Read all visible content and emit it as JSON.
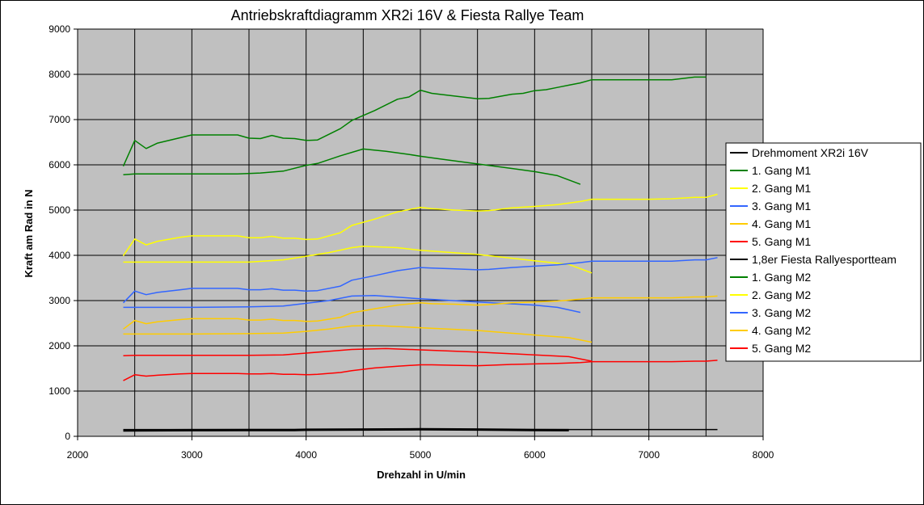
{
  "chart_data": {
    "type": "line",
    "title": "Antriebskraftdiagramm XR2i 16V & Fiesta Rallye Team",
    "xlabel": "Drehzahl in U/min",
    "ylabel": "Kraft am Rad in N",
    "xlim": [
      2000,
      8000
    ],
    "ylim": [
      0,
      9000
    ],
    "x_ticks": [
      2000,
      3000,
      4000,
      5000,
      6000,
      7000,
      8000
    ],
    "y_ticks": [
      0,
      1000,
      2000,
      3000,
      4000,
      5000,
      6000,
      7000,
      8000,
      9000
    ],
    "grid": "vertical and horizontal",
    "plot_background": "#c0c0c0",
    "legend_position": "right",
    "series": [
      {
        "name": "Drehmoment XR2i 16V",
        "color": "#000000",
        "width": 3,
        "x": [
          2400,
          3000,
          3500,
          3900,
          4000,
          4500,
          5000,
          5500,
          6000,
          6300
        ],
        "y": [
          130,
          135,
          140,
          140,
          145,
          150,
          155,
          150,
          140,
          135
        ]
      },
      {
        "name": "1. Gang M1",
        "color": "#008000",
        "width": 1.5,
        "x": [
          2400,
          2500,
          2600,
          2800,
          3000,
          3400,
          3600,
          3800,
          4000,
          4100,
          4300,
          4500,
          4700,
          4900,
          5000,
          5200,
          5500,
          5800,
          6000,
          6200,
          6400
        ],
        "y": [
          5780,
          5800,
          5800,
          5800,
          5800,
          5800,
          5820,
          5860,
          5990,
          6030,
          6200,
          6350,
          6300,
          6230,
          6190,
          6120,
          6020,
          5920,
          5850,
          5760,
          5570
        ]
      },
      {
        "name": "2. Gang M1",
        "color": "#ffff00",
        "width": 1.5,
        "x": [
          2400,
          2500,
          3000,
          3500,
          3800,
          4000,
          4200,
          4400,
          4500,
          4800,
          5000,
          5500,
          6000,
          6300,
          6500
        ],
        "y": [
          3850,
          3850,
          3850,
          3850,
          3900,
          3980,
          4060,
          4170,
          4200,
          4170,
          4110,
          4020,
          3880,
          3800,
          3610
        ]
      },
      {
        "name": "3. Gang M1",
        "color": "#3366ff",
        "width": 1.5,
        "x": [
          2400,
          2500,
          3000,
          3500,
          3800,
          4000,
          4200,
          4400,
          4600,
          5000,
          5500,
          6000,
          6200,
          6400
        ],
        "y": [
          2850,
          2850,
          2850,
          2860,
          2880,
          2940,
          3000,
          3100,
          3110,
          3040,
          2970,
          2900,
          2850,
          2740
        ]
      },
      {
        "name": "4. Gang M1",
        "color": "#ffcc00",
        "width": 1.5,
        "x": [
          2400,
          2500,
          3000,
          3500,
          3800,
          4000,
          4200,
          4400,
          4600,
          5000,
          5500,
          6000,
          6300,
          6500
        ],
        "y": [
          2260,
          2260,
          2260,
          2270,
          2280,
          2320,
          2370,
          2440,
          2450,
          2400,
          2340,
          2240,
          2180,
          2080
        ]
      },
      {
        "name": "5. Gang M1",
        "color": "#ff0000",
        "width": 1.5,
        "x": [
          2400,
          2500,
          3000,
          3500,
          3800,
          4000,
          4200,
          4400,
          4700,
          5000,
          5500,
          6000,
          6300,
          6500
        ],
        "y": [
          1780,
          1790,
          1790,
          1790,
          1800,
          1840,
          1880,
          1920,
          1940,
          1910,
          1860,
          1800,
          1760,
          1660
        ]
      },
      {
        "name": "1,8er Fiesta Rallyesportteam",
        "color": "#000000",
        "width": 1.5,
        "x": [
          2400,
          3000,
          4000,
          5000,
          6000,
          7000,
          7600
        ],
        "y": [
          150,
          150,
          150,
          150,
          150,
          150,
          150
        ]
      },
      {
        "name": "1. Gang M2",
        "color": "#008000",
        "width": 1.5,
        "x": [
          2400,
          2500,
          2600,
          2700,
          2900,
          3000,
          3400,
          3500,
          3600,
          3700,
          3800,
          3900,
          4000,
          4100,
          4300,
          4400,
          4600,
          4800,
          4900,
          5000,
          5100,
          5300,
          5500,
          5600,
          5800,
          5900,
          6000,
          6100,
          6200,
          6300,
          6400,
          6500,
          7000,
          7200,
          7400,
          7500
        ],
        "y": [
          5970,
          6540,
          6360,
          6480,
          6600,
          6660,
          6660,
          6590,
          6580,
          6650,
          6590,
          6580,
          6540,
          6550,
          6800,
          6980,
          7200,
          7450,
          7500,
          7650,
          7580,
          7520,
          7460,
          7470,
          7560,
          7580,
          7640,
          7660,
          7710,
          7760,
          7810,
          7880,
          7880,
          7880,
          7940,
          7940
        ]
      },
      {
        "name": "2. Gang M2",
        "color": "#ffff00",
        "width": 1.5,
        "x": [
          2400,
          2500,
          2600,
          2700,
          2900,
          3000,
          3400,
          3500,
          3600,
          3700,
          3800,
          3900,
          4000,
          4100,
          4300,
          4400,
          4600,
          4800,
          5000,
          5100,
          5300,
          5500,
          5600,
          5800,
          6000,
          6200,
          6400,
          6500,
          7000,
          7200,
          7400,
          7500,
          7600
        ],
        "y": [
          3990,
          4360,
          4230,
          4310,
          4400,
          4430,
          4430,
          4390,
          4390,
          4420,
          4380,
          4380,
          4350,
          4360,
          4500,
          4660,
          4800,
          4960,
          5060,
          5030,
          5000,
          4980,
          4990,
          5050,
          5080,
          5120,
          5190,
          5240,
          5240,
          5250,
          5280,
          5280,
          5350
        ]
      },
      {
        "name": "3. Gang M2",
        "color": "#3366ff",
        "width": 1.5,
        "x": [
          2400,
          2500,
          2600,
          2700,
          2900,
          3000,
          3400,
          3500,
          3600,
          3700,
          3800,
          3900,
          4000,
          4100,
          4300,
          4400,
          4600,
          4800,
          5000,
          5100,
          5300,
          5500,
          5600,
          5800,
          6000,
          6200,
          6400,
          6500,
          7000,
          7200,
          7400,
          7500,
          7600
        ],
        "y": [
          2950,
          3210,
          3130,
          3180,
          3240,
          3270,
          3270,
          3240,
          3240,
          3260,
          3230,
          3230,
          3210,
          3220,
          3320,
          3450,
          3550,
          3660,
          3730,
          3720,
          3700,
          3680,
          3690,
          3730,
          3760,
          3790,
          3840,
          3870,
          3870,
          3870,
          3900,
          3900,
          3950
        ]
      },
      {
        "name": "4. Gang M2",
        "color": "#ffcc00",
        "width": 1.5,
        "x": [
          2400,
          2500,
          2600,
          2700,
          2900,
          3000,
          3400,
          3500,
          3600,
          3700,
          3800,
          3900,
          4000,
          4100,
          4300,
          4400,
          4600,
          4800,
          5000,
          5100,
          5300,
          5500,
          5600,
          5800,
          6000,
          6200,
          6400,
          6500,
          7000,
          7200,
          7400,
          7500,
          7600
        ],
        "y": [
          2370,
          2560,
          2490,
          2530,
          2580,
          2600,
          2600,
          2570,
          2570,
          2590,
          2560,
          2560,
          2540,
          2550,
          2630,
          2730,
          2820,
          2900,
          2950,
          2930,
          2920,
          2900,
          2910,
          2950,
          2970,
          2990,
          3030,
          3060,
          3060,
          3060,
          3080,
          3080,
          3100
        ]
      },
      {
        "name": "5. Gang M2",
        "color": "#ff0000",
        "width": 1.5,
        "x": [
          2400,
          2500,
          2600,
          2700,
          2900,
          3000,
          3400,
          3500,
          3600,
          3700,
          3800,
          3900,
          4000,
          4100,
          4300,
          4400,
          4600,
          4800,
          5000,
          5100,
          5300,
          5500,
          5600,
          5800,
          6000,
          6200,
          6400,
          6500,
          7000,
          7200,
          7400,
          7500,
          7600
        ],
        "y": [
          1230,
          1360,
          1330,
          1350,
          1380,
          1390,
          1390,
          1380,
          1380,
          1390,
          1370,
          1370,
          1360,
          1370,
          1410,
          1450,
          1510,
          1550,
          1580,
          1580,
          1570,
          1560,
          1570,
          1590,
          1600,
          1610,
          1630,
          1650,
          1650,
          1650,
          1660,
          1660,
          1680
        ]
      }
    ]
  }
}
